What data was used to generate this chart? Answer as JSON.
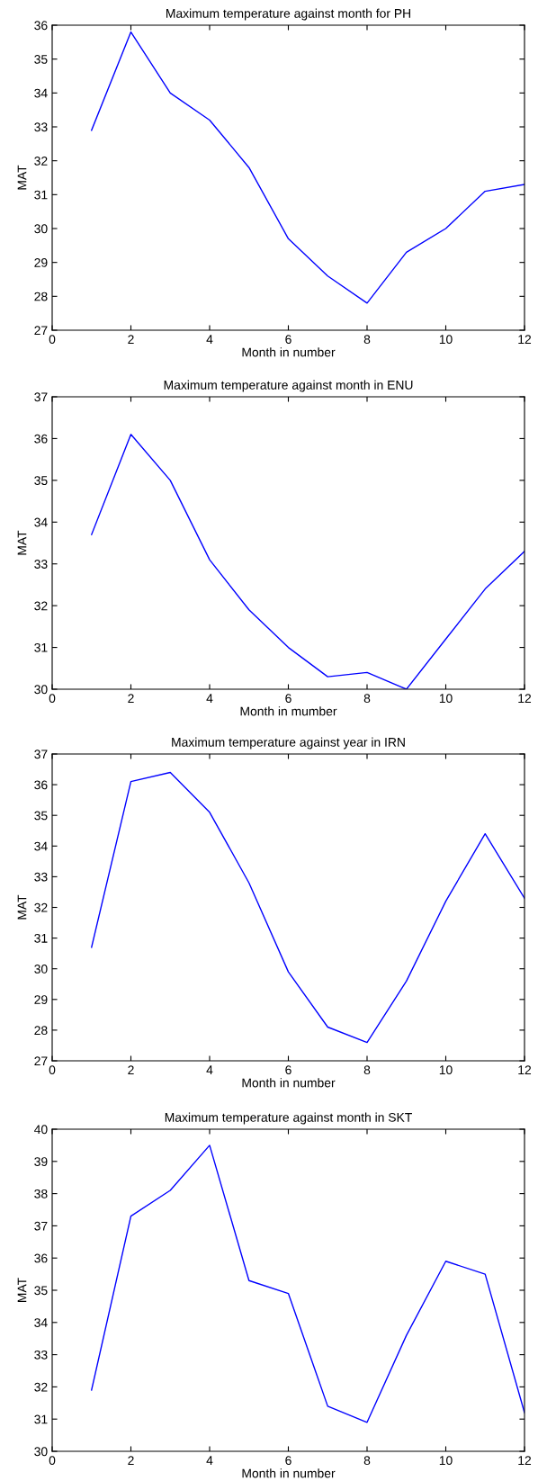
{
  "chart_data": [
    {
      "type": "line",
      "title": "Maximum temperature against month for PH",
      "xlabel": "Month in number",
      "ylabel": "MAT",
      "x": [
        1,
        2,
        3,
        4,
        5,
        6,
        7,
        8,
        9,
        10,
        11,
        12
      ],
      "series": [
        {
          "color": "#0000ff",
          "values": [
            32.9,
            35.8,
            34.0,
            33.2,
            31.8,
            29.7,
            28.6,
            27.8,
            29.3,
            30.0,
            31.1,
            31.3
          ]
        }
      ],
      "xlim": [
        0,
        12
      ],
      "xticks": [
        0,
        2,
        4,
        6,
        8,
        10,
        12
      ],
      "ylim": [
        27,
        36
      ],
      "yticks": [
        27,
        28,
        29,
        30,
        31,
        32,
        33,
        34,
        35,
        36
      ],
      "grid": false,
      "legend": false,
      "marker": "none",
      "line_style": "solid"
    },
    {
      "type": "line",
      "title": "Maximum temperature against month in ENU",
      "xlabel": "Month in mumber",
      "ylabel": "MAT",
      "x": [
        1,
        2,
        3,
        4,
        5,
        6,
        7,
        8,
        9,
        10,
        11,
        12
      ],
      "series": [
        {
          "color": "#0000ff",
          "values": [
            33.7,
            36.1,
            35.0,
            33.1,
            31.9,
            31.0,
            30.3,
            30.4,
            30.0,
            31.2,
            32.4,
            33.3
          ]
        }
      ],
      "xlim": [
        0,
        12
      ],
      "xticks": [
        0,
        2,
        4,
        6,
        8,
        10,
        12
      ],
      "ylim": [
        30,
        37
      ],
      "yticks": [
        30,
        31,
        32,
        33,
        34,
        35,
        36,
        37
      ],
      "grid": false,
      "legend": false,
      "marker": "none",
      "line_style": "solid"
    },
    {
      "type": "line",
      "title": "Maximum temperature against year in IRN",
      "xlabel": "Month in number",
      "ylabel": "MAT",
      "x": [
        1,
        2,
        3,
        4,
        5,
        6,
        7,
        8,
        9,
        10,
        11,
        12
      ],
      "series": [
        {
          "color": "#0000ff",
          "values": [
            30.7,
            36.1,
            36.4,
            35.1,
            32.8,
            29.9,
            28.1,
            27.6,
            29.6,
            32.2,
            34.4,
            32.3
          ]
        }
      ],
      "xlim": [
        0,
        12
      ],
      "xticks": [
        0,
        2,
        4,
        6,
        8,
        10,
        12
      ],
      "ylim": [
        27,
        37
      ],
      "yticks": [
        27,
        28,
        29,
        30,
        31,
        32,
        33,
        34,
        35,
        36,
        37
      ],
      "grid": false,
      "legend": false,
      "marker": "none",
      "line_style": "solid"
    },
    {
      "type": "line",
      "title": "Maximum temperature against month in SKT",
      "xlabel": "Month in number",
      "ylabel": "MAT",
      "x": [
        1,
        2,
        3,
        4,
        5,
        6,
        7,
        8,
        9,
        10,
        11,
        12
      ],
      "series": [
        {
          "color": "#0000ff",
          "values": [
            31.9,
            37.3,
            38.1,
            39.5,
            35.3,
            34.9,
            31.4,
            30.9,
            33.6,
            35.9,
            35.5,
            31.2
          ]
        }
      ],
      "xlim": [
        0,
        12
      ],
      "xticks": [
        0,
        2,
        4,
        6,
        8,
        10,
        12
      ],
      "ylim": [
        30,
        40
      ],
      "yticks": [
        30,
        31,
        32,
        33,
        34,
        35,
        36,
        37,
        38,
        39,
        40
      ],
      "grid": false,
      "legend": false,
      "marker": "none",
      "line_style": "solid"
    }
  ]
}
